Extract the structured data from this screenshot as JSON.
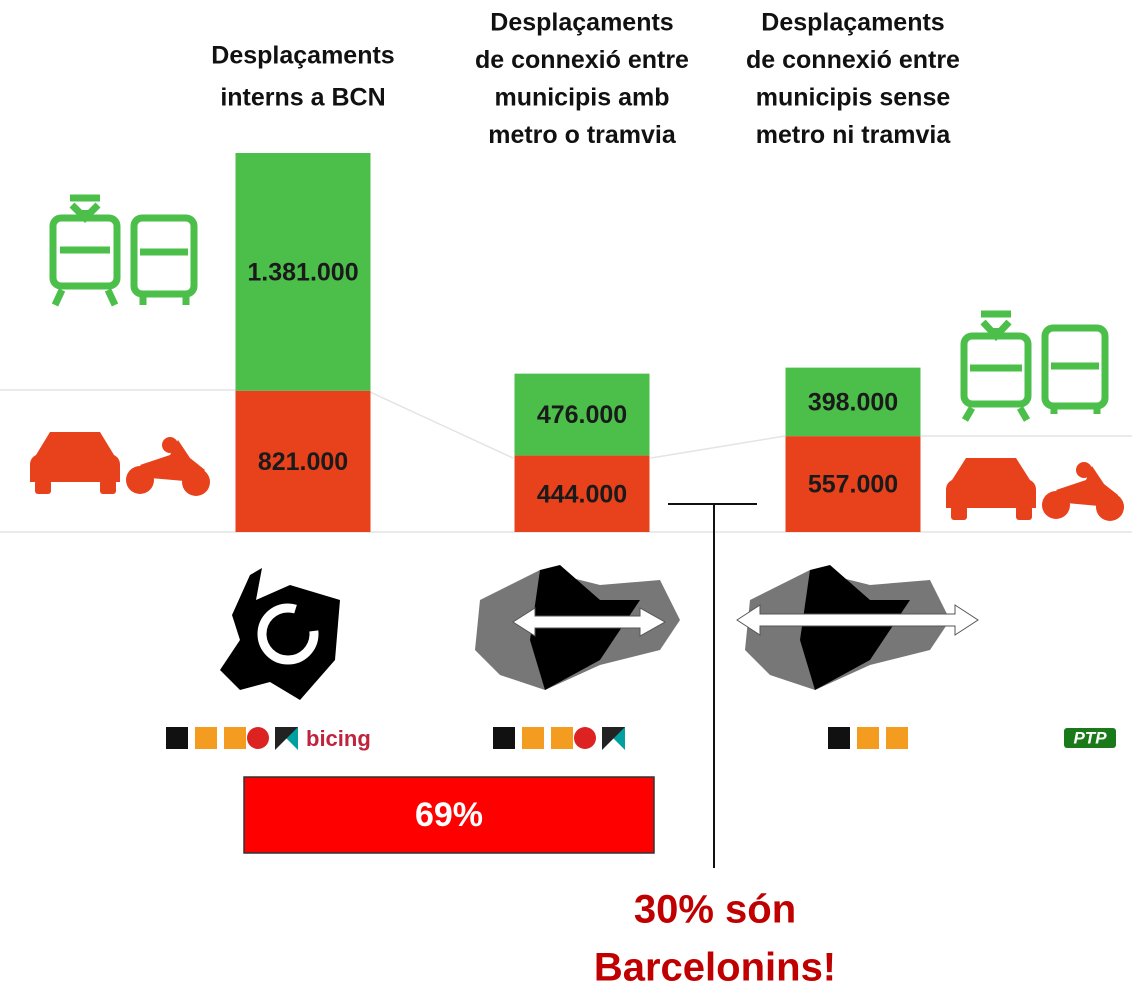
{
  "chart_data": {
    "type": "bar",
    "stacked": true,
    "categories": [
      [
        "Desplaçaments",
        "interns a BCN"
      ],
      [
        "Desplaçaments",
        "de connexió entre",
        "municipis amb",
        "metro o tramvia"
      ],
      [
        "Desplaçaments",
        "de connexió entre",
        "municipis sense",
        "metro ni tramvia"
      ]
    ],
    "series": [
      {
        "color": "#e8421c",
        "values": [
          821000,
          444000,
          557000
        ],
        "value_labels": [
          "821.000",
          "444.000",
          "557.000"
        ]
      },
      {
        "color": "#4cbf4a",
        "values": [
          1381000,
          476000,
          398000
        ],
        "value_labels": [
          "1.381.000",
          "476.000",
          "398.000"
        ]
      }
    ],
    "annotations": {
      "share": "69%",
      "note": [
        "30% són",
        "Barcelonins!"
      ]
    },
    "logos": {
      "bicing": "bicing",
      "ptp": "PTP"
    }
  }
}
